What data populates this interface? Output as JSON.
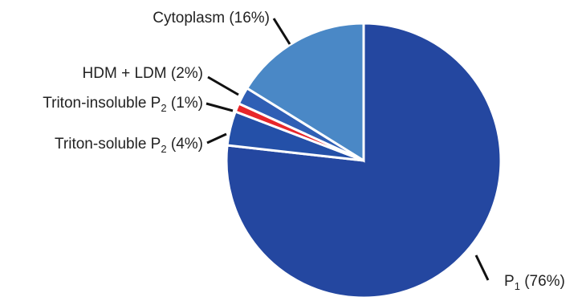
{
  "chart_data": {
    "type": "pie",
    "start_position": "12 o'clock",
    "direction": "clockwise",
    "slices": [
      {
        "name": "P",
        "sub": "1",
        "value": 76,
        "pct": "(76%)",
        "color": "#2447a0"
      },
      {
        "name": "Triton-soluble P",
        "sub": "2",
        "value": 4,
        "pct": "(4%)",
        "color": "#2450a8"
      },
      {
        "name": "Triton-insoluble P",
        "sub": "2",
        "value": 1,
        "pct": "(1%)",
        "color": "#e8262a"
      },
      {
        "name": "HDM + LDM",
        "sub": "",
        "value": 2,
        "pct": "(2%)",
        "color": "#2f5fb5"
      },
      {
        "name": "Cytoplasm",
        "sub": "",
        "value": 16,
        "pct": "(16%)",
        "color": "#4a88c6"
      }
    ]
  }
}
